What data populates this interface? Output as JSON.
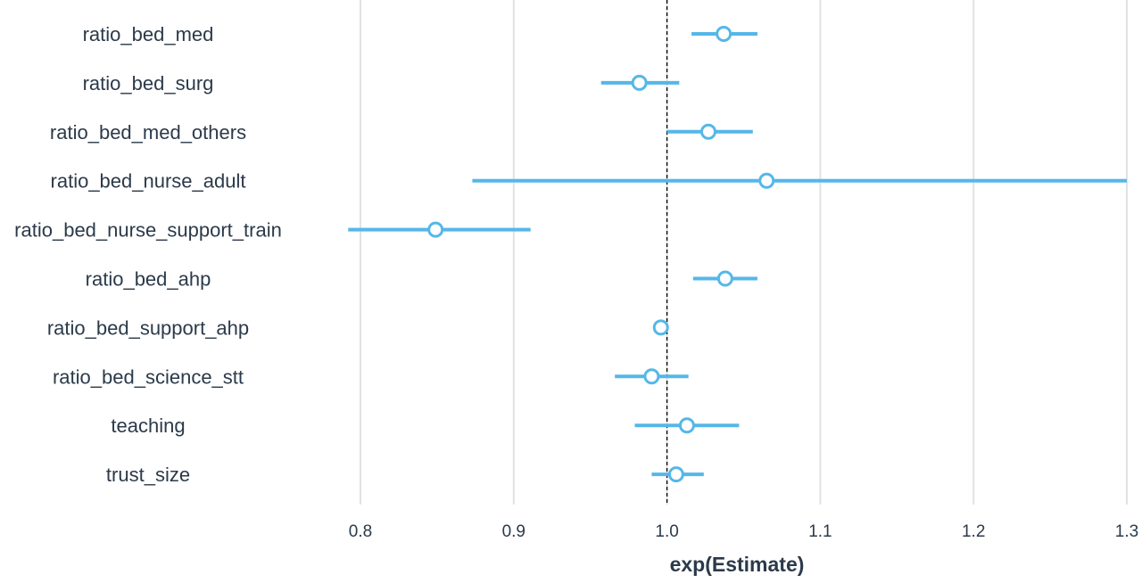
{
  "chart_data": {
    "type": "scatter",
    "subtype": "forest-plot",
    "title": "",
    "xlabel": "exp(Estimate)",
    "ylabel": "",
    "xlim": [
      0.8,
      1.3
    ],
    "xticks": [
      0.8,
      0.9,
      1.0,
      1.1,
      1.2,
      1.3
    ],
    "xtick_labels": [
      "0.8",
      "0.9",
      "1.0",
      "1.1",
      "1.2",
      "1.3"
    ],
    "reference_line": 1.0,
    "grid": "vertical",
    "series": [
      {
        "color": "#55b7e8",
        "points": [
          {
            "label": "ratio_bed_med",
            "estimate": 1.037,
            "low": 1.016,
            "high": 1.059
          },
          {
            "label": "ratio_bed_surg",
            "estimate": 0.982,
            "low": 0.957,
            "high": 1.008
          },
          {
            "label": "ratio_bed_med_others",
            "estimate": 1.027,
            "low": 1.0,
            "high": 1.056
          },
          {
            "label": "ratio_bed_nurse_adult",
            "estimate": 1.065,
            "low": 0.873,
            "high": 1.3
          },
          {
            "label": "ratio_bed_nurse_support_train",
            "estimate": 0.849,
            "low": 0.792,
            "high": 0.911
          },
          {
            "label": "ratio_bed_ahp",
            "estimate": 1.038,
            "low": 1.017,
            "high": 1.059
          },
          {
            "label": "ratio_bed_support_ahp",
            "estimate": 0.996,
            "low": 0.995,
            "high": 0.997
          },
          {
            "label": "ratio_bed_science_stt",
            "estimate": 0.99,
            "low": 0.966,
            "high": 1.014
          },
          {
            "label": "teaching",
            "estimate": 1.013,
            "low": 0.979,
            "high": 1.047
          },
          {
            "label": "trust_size",
            "estimate": 1.006,
            "low": 0.99,
            "high": 1.024
          }
        ]
      }
    ]
  },
  "colors": {
    "point": "#55b7e8",
    "grid": "#e2e2e2",
    "reference": "#000000",
    "text": "#2b3a4a"
  }
}
